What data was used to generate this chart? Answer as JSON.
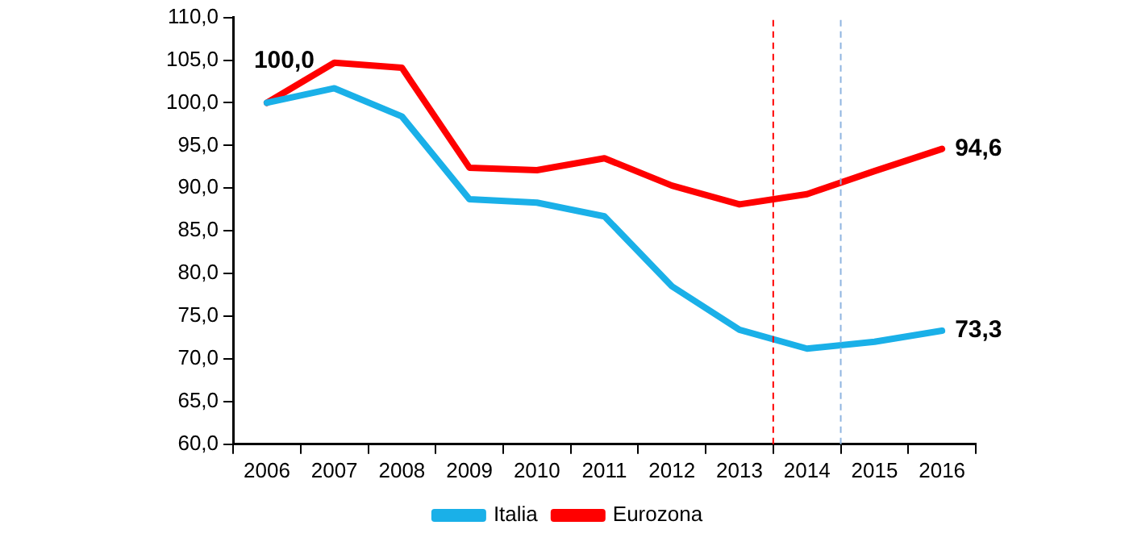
{
  "chart_data": {
    "type": "line",
    "x": [
      2006,
      2007,
      2008,
      2009,
      2010,
      2011,
      2012,
      2013,
      2014,
      2015,
      2016
    ],
    "xlim": [
      2005.5,
      2016.5
    ],
    "xticks": [
      {
        "value": 2005.5,
        "label": null
      },
      2006,
      {
        "value": 2006.5,
        "label": null
      },
      2007,
      {
        "value": 2007.5,
        "label": null
      },
      2008,
      {
        "value": 2008.5,
        "label": null
      },
      2009,
      {
        "value": 2009.5,
        "label": null
      },
      2010,
      {
        "value": 2010.5,
        "label": null
      },
      2011,
      {
        "value": 2011.5,
        "label": null
      },
      2012,
      {
        "value": 2012.5,
        "label": null
      },
      2013,
      {
        "value": 2013.5,
        "label": null
      },
      2014,
      {
        "value": 2014.5,
        "label": null
      },
      2015,
      {
        "value": 2015.5,
        "label": null
      },
      2016,
      {
        "value": 2016.5,
        "label": null
      }
    ],
    "ylim": [
      60,
      110
    ],
    "yticks": [
      {
        "value": 60,
        "label": "60,0"
      },
      {
        "value": 65,
        "label": "65,0"
      },
      {
        "value": 70,
        "label": "70,0"
      },
      {
        "value": 75,
        "label": "75,0"
      },
      {
        "value": 80,
        "label": "80,0"
      },
      {
        "value": 85,
        "label": "85,0"
      },
      {
        "value": 90,
        "label": "90,0"
      },
      {
        "value": 95,
        "label": "95,0"
      },
      {
        "value": 100,
        "label": "100,0"
      },
      {
        "value": 105,
        "label": "105,0"
      },
      {
        "value": 110,
        "label": "110,0"
      }
    ],
    "series": [
      {
        "name": "Italia",
        "color": "#1ab0e8",
        "values": [
          100,
          101.7,
          98.4,
          88.7,
          88.3,
          86.7,
          78.5,
          73.4,
          71.2,
          72.0,
          73.3
        ],
        "value_labels": [
          null,
          null,
          null,
          null,
          null,
          null,
          null,
          null,
          null,
          null,
          "73,3"
        ]
      },
      {
        "name": "Eurozona",
        "color": "#ff0000",
        "values": [
          100,
          104.7,
          104.1,
          92.4,
          92.1,
          93.5,
          90.3,
          88.1,
          89.3,
          92.0,
          94.6
        ],
        "value_labels": [
          "100,0",
          null,
          null,
          null,
          null,
          null,
          null,
          null,
          null,
          null,
          "94,6"
        ]
      }
    ],
    "ref_lines": [
      {
        "axis": "x",
        "value": 2013.5,
        "color": "#ff0000",
        "line_style": "dashed"
      },
      {
        "axis": "x",
        "value": 2014.5,
        "color": "#8fb4e0",
        "line_style": "dashed"
      }
    ],
    "grid": false,
    "legend": "bottom",
    "marker": "none",
    "line_style": "solid"
  }
}
